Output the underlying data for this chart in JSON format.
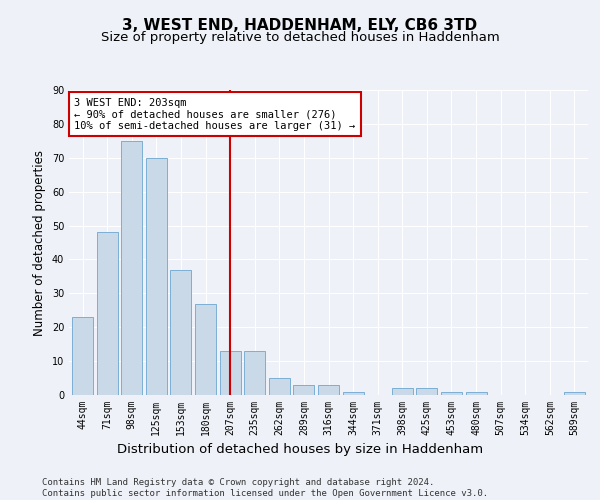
{
  "title": "3, WEST END, HADDENHAM, ELY, CB6 3TD",
  "subtitle": "Size of property relative to detached houses in Haddenham",
  "xlabel": "Distribution of detached houses by size in Haddenham",
  "ylabel": "Number of detached properties",
  "categories": [
    "44sqm",
    "71sqm",
    "98sqm",
    "125sqm",
    "153sqm",
    "180sqm",
    "207sqm",
    "235sqm",
    "262sqm",
    "289sqm",
    "316sqm",
    "344sqm",
    "371sqm",
    "398sqm",
    "425sqm",
    "453sqm",
    "480sqm",
    "507sqm",
    "534sqm",
    "562sqm",
    "589sqm"
  ],
  "values": [
    23,
    48,
    75,
    70,
    37,
    27,
    13,
    13,
    5,
    3,
    3,
    1,
    0,
    2,
    2,
    1,
    1,
    0,
    0,
    0,
    1
  ],
  "bar_color": "#c9d9e8",
  "bar_edge_color": "#7bafd4",
  "vline_x_index": 6,
  "vline_color": "#cc0000",
  "annotation_text": "3 WEST END: 203sqm\n← 90% of detached houses are smaller (276)\n10% of semi-detached houses are larger (31) →",
  "annotation_box_color": "#ffffff",
  "annotation_box_edge": "#cc0000",
  "footer_text": "Contains HM Land Registry data © Crown copyright and database right 2024.\nContains public sector information licensed under the Open Government Licence v3.0.",
  "background_color": "#eef2f8",
  "ylim": [
    0,
    90
  ],
  "yticks": [
    0,
    10,
    20,
    30,
    40,
    50,
    60,
    70,
    80,
    90
  ],
  "title_fontsize": 11,
  "subtitle_fontsize": 9.5,
  "ylabel_fontsize": 8.5,
  "xlabel_fontsize": 9.5,
  "tick_fontsize": 7,
  "footer_fontsize": 6.5,
  "annotation_fontsize": 7.5
}
